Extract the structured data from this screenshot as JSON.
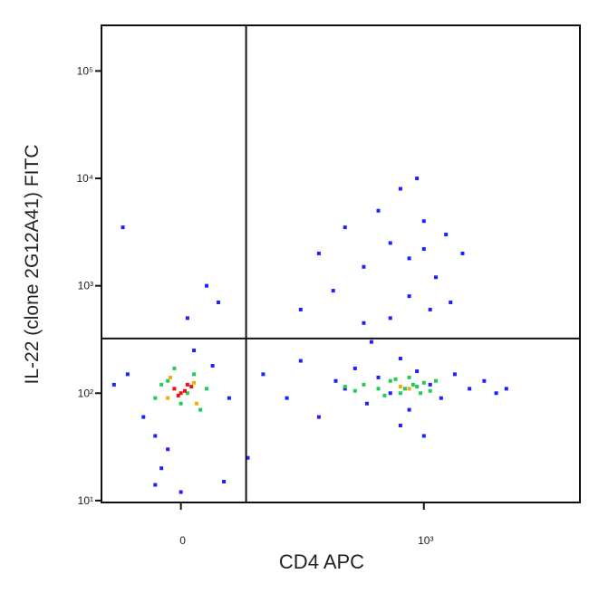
{
  "chart_data": {
    "type": "scatter",
    "x_label": "CD4 APC",
    "y_label": "IL-22 (clone 2G12A41) FITC",
    "xscale": "arcsinh",
    "x_cofactor": 50,
    "yscale": "log",
    "xlim": [
      -76,
      10700
    ],
    "ylim": [
      9.6,
      266000
    ],
    "xticks": [
      0,
      {
        "value": 1000,
        "label": "10³"
      }
    ],
    "yticks": [
      {
        "value": 10,
        "label": "10¹"
      },
      {
        "value": 100,
        "label": "10²"
      },
      {
        "value": 1000,
        "label": "10³"
      },
      {
        "value": 10000,
        "label": "10⁴"
      },
      {
        "value": 100000,
        "label": "10⁵"
      }
    ],
    "gates": {
      "x": 58,
      "y": 323
    },
    "series": [
      {
        "color": "#1f1fff",
        "x": [
          -60,
          -30,
          -20,
          -10,
          10,
          25,
          40,
          -45,
          5,
          30,
          -15,
          80,
          120,
          150,
          200,
          260,
          300,
          350,
          420,
          500,
          600,
          700,
          800,
          900,
          1100,
          1300,
          1600,
          2000,
          2500,
          3000,
          150,
          250,
          400,
          600,
          800,
          1000,
          1200,
          1500,
          1800,
          300,
          500,
          700,
          900,
          1100,
          1400,
          400,
          600,
          800,
          1000,
          200,
          -50,
          20,
          60,
          3500,
          -20,
          0,
          35,
          700,
          1000,
          450
        ],
        "y": [
          120,
          60,
          40,
          30,
          250,
          180,
          90,
          150,
          500,
          700,
          20,
          150,
          90,
          200,
          60,
          130,
          110,
          170,
          80,
          140,
          100,
          210,
          70,
          160,
          120,
          90,
          150,
          110,
          130,
          100,
          600,
          900,
          1500,
          2500,
          800,
          4000,
          1200,
          700,
          2000,
          3500,
          5000,
          8000,
          10000,
          600,
          3000,
          450,
          500,
          1800,
          2200,
          2000,
          3500,
          1000,
          25,
          110,
          14,
          12,
          15,
          50,
          40,
          300
        ]
      },
      {
        "color": "#22cc55",
        "x": [
          -20,
          -10,
          0,
          10,
          20,
          -5,
          15,
          -15,
          5,
          400,
          500,
          600,
          700,
          800,
          900,
          1000,
          1100,
          550,
          650,
          750,
          850,
          950,
          1200,
          300,
          350
        ],
        "y": [
          90,
          130,
          80,
          150,
          110,
          170,
          70,
          120,
          100,
          120,
          110,
          130,
          100,
          140,
          115,
          125,
          105,
          95,
          135,
          110,
          120,
          100,
          130,
          115,
          105
        ]
      },
      {
        "color": "#f0b000",
        "x": [
          -10,
          10,
          -8,
          12,
          700,
          800
        ],
        "y": [
          90,
          125,
          140,
          80,
          115,
          110
        ]
      },
      {
        "color": "#ee1111",
        "x": [
          -5,
          0,
          5,
          -2,
          3,
          8
        ],
        "y": [
          110,
          100,
          120,
          95,
          105,
          115
        ]
      }
    ]
  }
}
